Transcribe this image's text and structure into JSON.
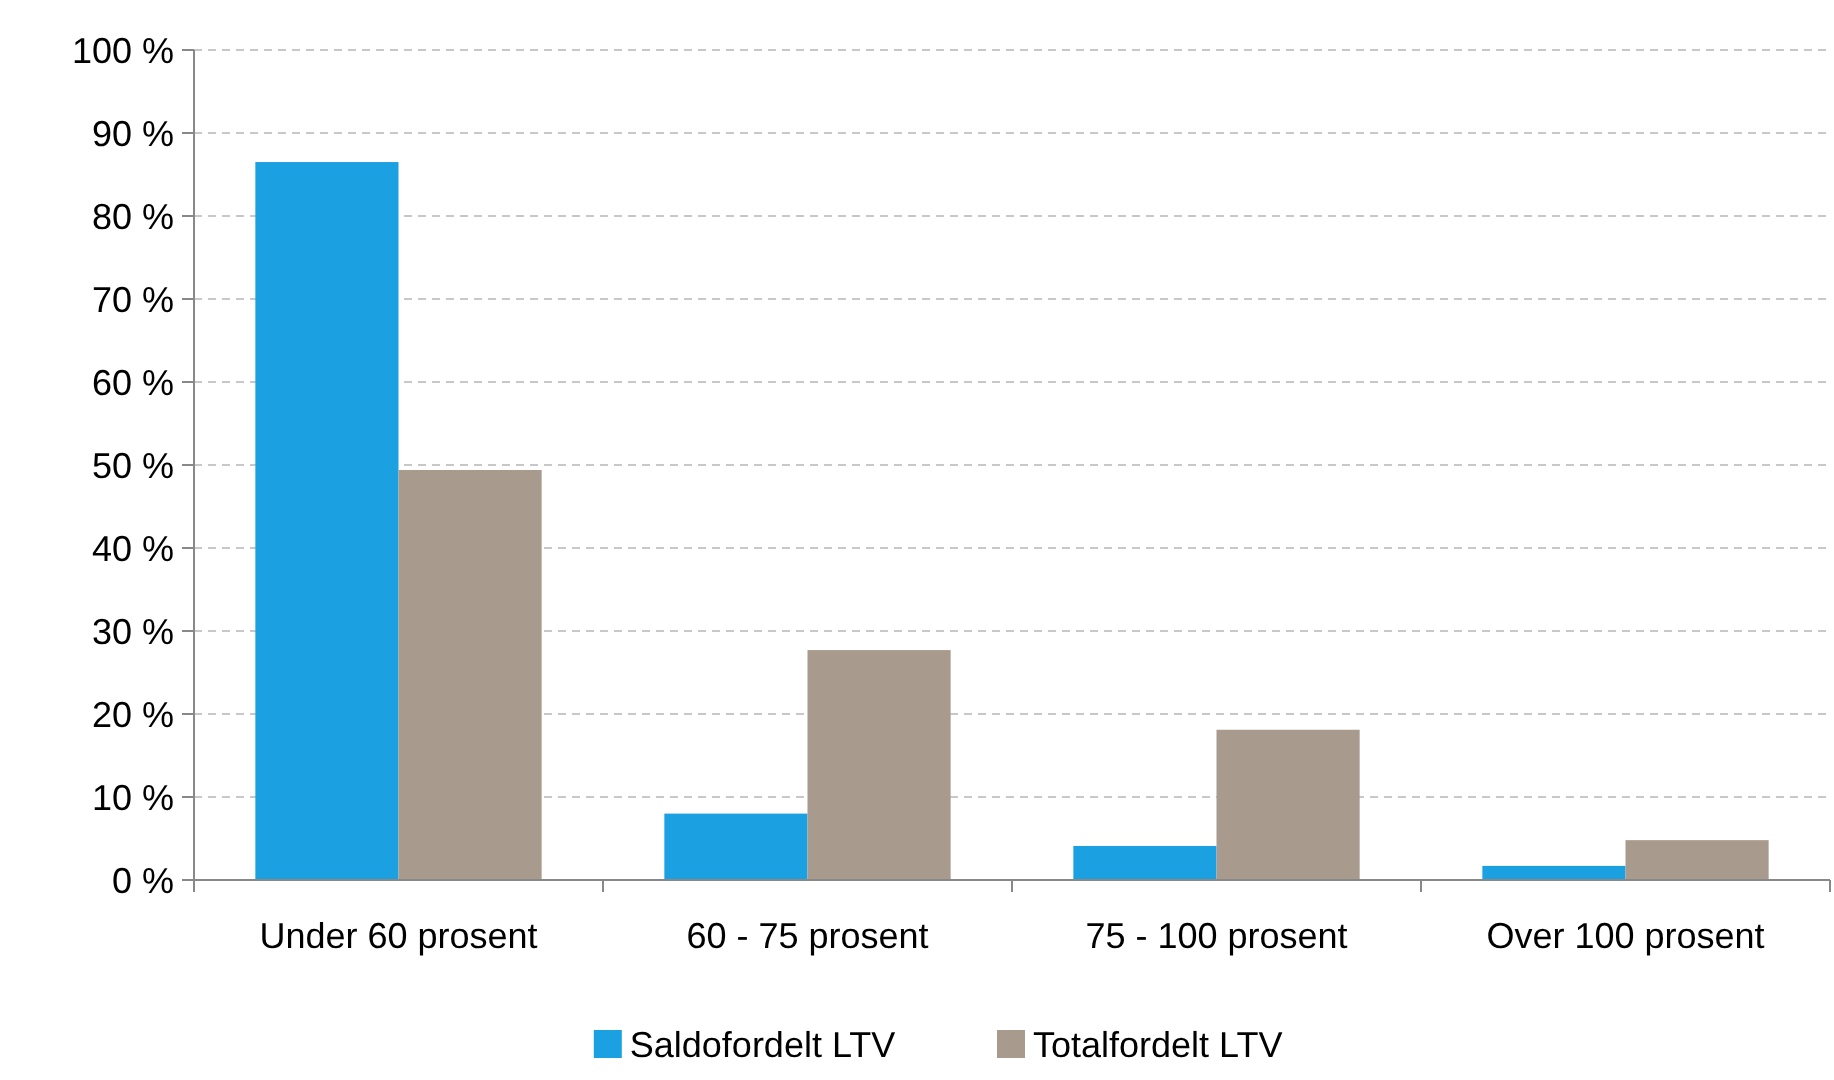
{
  "chart_data": {
    "type": "bar",
    "categories": [
      "Under 60 prosent",
      "60 - 75 prosent",
      "75 - 100 prosent",
      "Over 100 prosent"
    ],
    "series": [
      {
        "name": "Saldofordelt LTV",
        "color": "#1ba1e2",
        "values": [
          86.5,
          8,
          4.1,
          1.7
        ]
      },
      {
        "name": "Totalfordelt LTV",
        "color": "#a89a8c",
        "values": [
          49.4,
          27.7,
          18.1,
          4.8
        ]
      }
    ],
    "ylim": [
      0,
      100
    ],
    "yticks": [
      {
        "value": 0,
        "label": "0 %"
      },
      {
        "value": 10,
        "label": "10 %"
      },
      {
        "value": 20,
        "label": "20 %"
      },
      {
        "value": 30,
        "label": "30 %"
      },
      {
        "value": 40,
        "label": "40 %"
      },
      {
        "value": 50,
        "label": "50 %"
      },
      {
        "value": 60,
        "label": "60 %"
      },
      {
        "value": 70,
        "label": "70 %"
      },
      {
        "value": 80,
        "label": "80 %"
      },
      {
        "value": 90,
        "label": "90 %"
      },
      {
        "value": 100,
        "label": "100 %"
      }
    ],
    "grid": "y",
    "legend": "bottom"
  }
}
